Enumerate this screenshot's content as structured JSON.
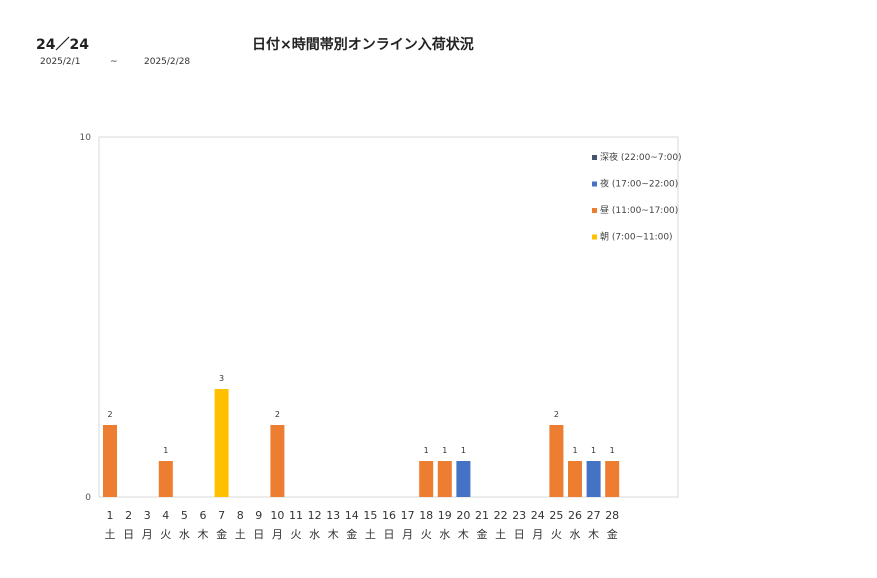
{
  "header": {
    "code": "24／24",
    "title": "日付×時間帯別オンライン入荷状況",
    "date_from": "2025/2/1",
    "tilde": "~",
    "date_to": "2025/2/28"
  },
  "chart_data": {
    "type": "bar",
    "stacked": true,
    "title": "日付×時間帯別オンライン入荷状況",
    "xlabel": "",
    "ylabel": "",
    "ylim": [
      0,
      10
    ],
    "yticks": [
      "0",
      "10"
    ],
    "grid": false,
    "legend_position": "top-right",
    "categories": [
      "1",
      "2",
      "3",
      "4",
      "5",
      "6",
      "7",
      "8",
      "9",
      "10",
      "11",
      "12",
      "13",
      "14",
      "15",
      "16",
      "17",
      "18",
      "19",
      "20",
      "21",
      "22",
      "23",
      "24",
      "25",
      "26",
      "27",
      "28"
    ],
    "weekdays": [
      "土",
      "日",
      "月",
      "火",
      "水",
      "木",
      "金",
      "土",
      "日",
      "月",
      "火",
      "水",
      "木",
      "金",
      "土",
      "日",
      "月",
      "火",
      "水",
      "木",
      "金",
      "土",
      "日",
      "月",
      "火",
      "水",
      "木",
      "金"
    ],
    "series": [
      {
        "name": "朝 (7:00~11:00)",
        "color": "#FFC000",
        "values": [
          0,
          0,
          0,
          0,
          0,
          0,
          3,
          0,
          0,
          0,
          0,
          0,
          0,
          0,
          0,
          0,
          0,
          0,
          0,
          0,
          0,
          0,
          0,
          0,
          0,
          0,
          0,
          0
        ]
      },
      {
        "name": "昼 (11:00~17:00)",
        "color": "#ED7D31",
        "values": [
          2,
          0,
          0,
          1,
          0,
          0,
          0,
          0,
          0,
          2,
          0,
          0,
          0,
          0,
          0,
          0,
          0,
          1,
          1,
          0,
          0,
          0,
          0,
          0,
          2,
          1,
          0,
          1
        ]
      },
      {
        "name": "夜 (17:00~22:00)",
        "color": "#4472C4",
        "values": [
          0,
          0,
          0,
          0,
          0,
          0,
          0,
          0,
          0,
          0,
          0,
          0,
          0,
          0,
          0,
          0,
          0,
          0,
          0,
          1,
          0,
          0,
          0,
          0,
          0,
          0,
          1,
          0
        ]
      },
      {
        "name": "深夜 (22:00~7:00)",
        "color": "#44546A",
        "values": [
          0,
          0,
          0,
          0,
          0,
          0,
          0,
          0,
          0,
          0,
          0,
          0,
          0,
          0,
          0,
          0,
          0,
          0,
          0,
          0,
          0,
          0,
          0,
          0,
          0,
          0,
          0,
          0
        ]
      }
    ],
    "totals": [
      "2",
      "",
      "",
      "1",
      "",
      "",
      "3",
      "",
      "",
      "2",
      "",
      "",
      "",
      "",
      "",
      "",
      "",
      "1",
      "1",
      "1",
      "",
      "",
      "",
      "",
      "2",
      "1",
      "1",
      "1"
    ]
  }
}
